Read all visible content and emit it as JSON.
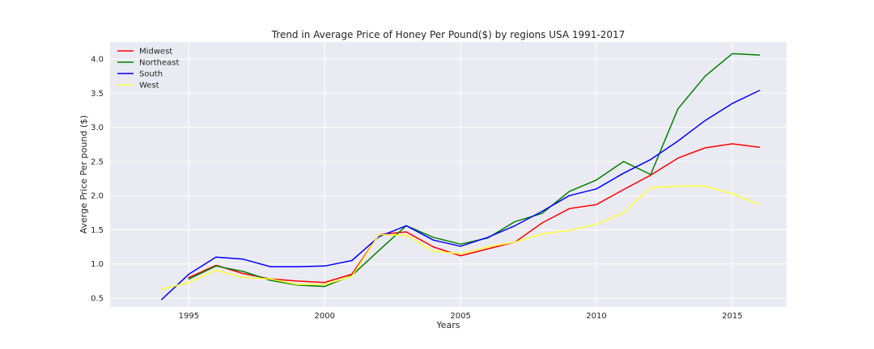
{
  "chart_data": {
    "type": "line",
    "title": "Trend in Average Price of Honey Per Pound($) by regions USA 1991-2017",
    "xlabel": "Years",
    "ylabel": "Averge Price Per pound ($)",
    "xlim": [
      1992.1,
      2017.0
    ],
    "ylim": [
      0.37,
      4.25
    ],
    "xticks": [
      1995,
      2000,
      2005,
      2010,
      2015
    ],
    "yticks": [
      0.5,
      1.0,
      1.5,
      2.0,
      2.5,
      3.0,
      3.5,
      4.0
    ],
    "grid": true,
    "legend_position": "top-left",
    "background": "#eaeaf2",
    "series": [
      {
        "name": "Midwest",
        "color": "#ff0000",
        "x": [
          1995,
          1996,
          1997,
          1998,
          1999,
          2000,
          2001,
          2002,
          2003,
          2004,
          2005,
          2006,
          2007,
          2008,
          2009,
          2010,
          2011,
          2012,
          2013,
          2014,
          2015,
          2016
        ],
        "y": [
          0.8,
          0.98,
          0.86,
          0.78,
          0.75,
          0.73,
          0.85,
          1.43,
          1.47,
          1.25,
          1.12,
          1.22,
          1.32,
          1.6,
          1.81,
          1.87,
          2.09,
          2.3,
          2.55,
          2.7,
          2.76,
          2.71
        ]
      },
      {
        "name": "Northeast",
        "color": "#008000",
        "x": [
          1995,
          1996,
          1997,
          1998,
          1999,
          2000,
          2001,
          2002,
          2003,
          2004,
          2005,
          2006,
          2007,
          2008,
          2009,
          2010,
          2011,
          2012,
          2013,
          2014,
          2015,
          2016
        ],
        "y": [
          0.78,
          0.97,
          0.89,
          0.76,
          0.69,
          0.67,
          0.83,
          1.2,
          1.56,
          1.39,
          1.29,
          1.38,
          1.62,
          1.74,
          2.06,
          2.23,
          2.5,
          2.31,
          3.27,
          3.75,
          4.08,
          4.06
        ]
      },
      {
        "name": "South",
        "color": "#0000ff",
        "x": [
          1994,
          1995,
          1996,
          1997,
          1998,
          1999,
          2000,
          2001,
          2002,
          2003,
          2004,
          2005,
          2006,
          2007,
          2008,
          2009,
          2010,
          2011,
          2012,
          2013,
          2014,
          2015,
          2016
        ],
        "y": [
          0.48,
          0.85,
          1.1,
          1.07,
          0.96,
          0.96,
          0.97,
          1.05,
          1.4,
          1.56,
          1.35,
          1.26,
          1.39,
          1.56,
          1.77,
          2.0,
          2.1,
          2.33,
          2.53,
          2.8,
          3.1,
          3.35,
          3.54
        ]
      },
      {
        "name": "West",
        "color": "#ffff33",
        "x": [
          1994,
          1995,
          1996,
          1997,
          1998,
          1999,
          2000,
          2001,
          2002,
          2003,
          2004,
          2005,
          2006,
          2007,
          2008,
          2009,
          2010,
          2011,
          2012,
          2013,
          2014,
          2015,
          2016
        ],
        "y": [
          0.63,
          0.73,
          0.91,
          0.8,
          0.78,
          0.7,
          0.7,
          0.82,
          1.43,
          1.42,
          1.19,
          1.15,
          1.25,
          1.32,
          1.44,
          1.49,
          1.58,
          1.75,
          2.12,
          2.14,
          2.14,
          2.03,
          1.87
        ]
      }
    ]
  }
}
